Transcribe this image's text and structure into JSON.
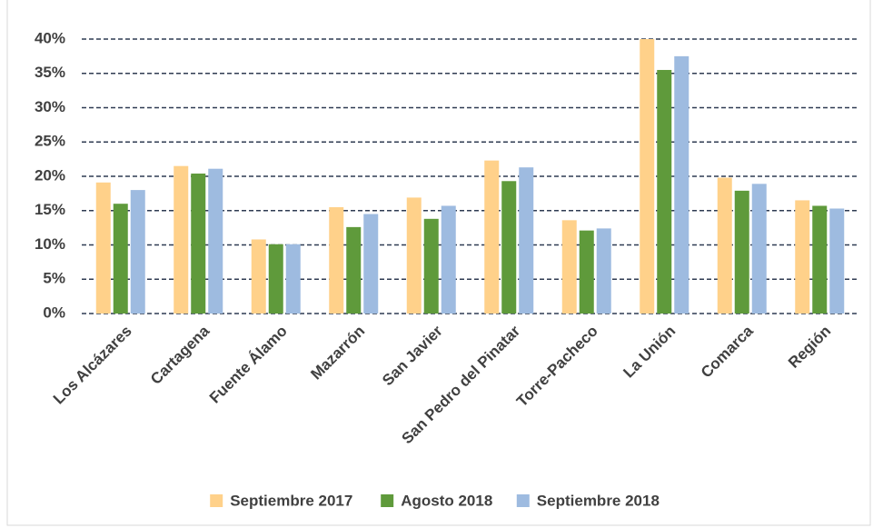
{
  "chart_data": {
    "type": "bar",
    "categories": [
      "Los Alcázares",
      "Cartagena",
      "Fuente Álamo",
      "Mazarrón",
      "San Javier",
      "San Pedro del Pinatar",
      "Torre-Pacheco",
      "La Unión",
      "Comarca",
      "Región"
    ],
    "series": [
      {
        "name": "Septiembre 2017",
        "color": "#ffd18a",
        "values": [
          19.1,
          21.5,
          10.8,
          15.5,
          16.9,
          22.3,
          13.6,
          40.0,
          19.8,
          16.5
        ]
      },
      {
        "name": "Agosto 2018",
        "color": "#5f9a3b",
        "values": [
          16.0,
          20.4,
          10.1,
          12.6,
          13.8,
          19.3,
          12.1,
          35.5,
          17.9,
          15.7
        ]
      },
      {
        "name": "Septiembre 2018",
        "color": "#9ebbe0",
        "values": [
          18.0,
          21.1,
          10.1,
          14.5,
          15.7,
          21.3,
          12.4,
          37.5,
          18.9,
          15.3
        ]
      }
    ],
    "ylim": [
      0,
      40
    ],
    "yticks": [
      {
        "value": 0,
        "label": "0%"
      },
      {
        "value": 5,
        "label": "5%"
      },
      {
        "value": 10,
        "label": "10%"
      },
      {
        "value": 15,
        "label": "15%"
      },
      {
        "value": 20,
        "label": "20%"
      },
      {
        "value": 25,
        "label": "25%"
      },
      {
        "value": 30,
        "label": "30%"
      },
      {
        "value": 35,
        "label": "35%"
      },
      {
        "value": 40,
        "label": "40%"
      }
    ],
    "grid": true,
    "legend": "bottom"
  }
}
